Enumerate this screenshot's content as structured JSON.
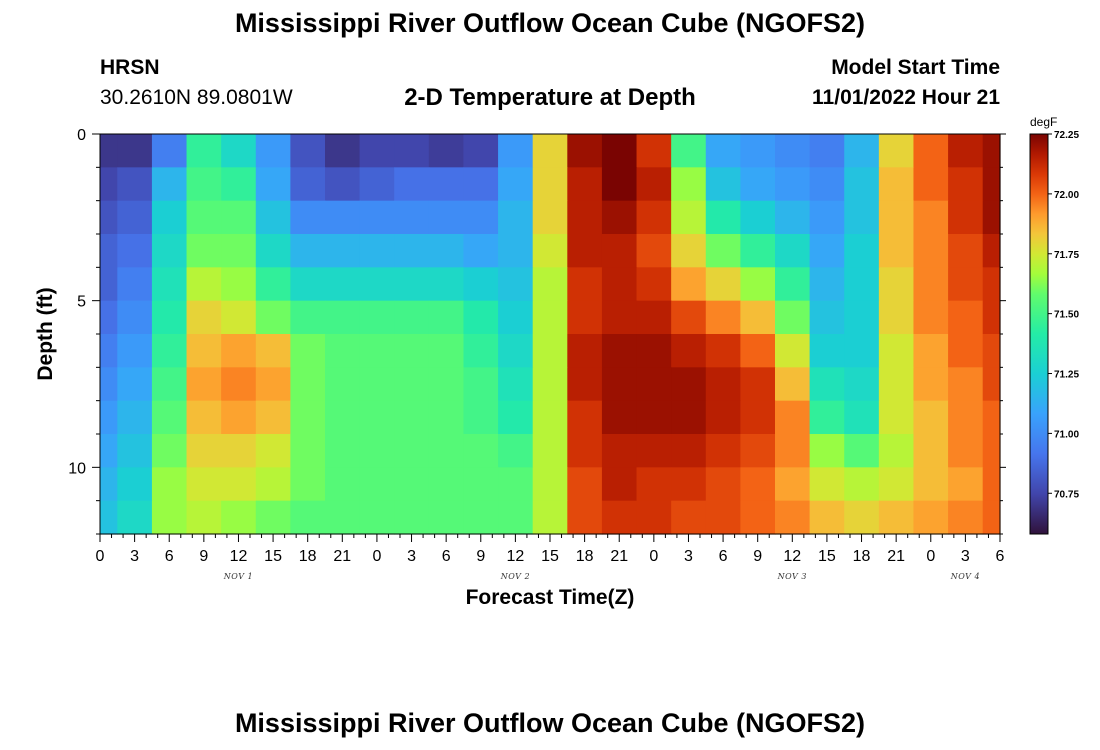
{
  "header": {
    "title": "Mississippi River Outflow Ocean Cube (NGOFS2)",
    "station_name": "HRSN",
    "station_coords": "30.2610N  89.0801W",
    "subtitle": "2-D Temperature at Depth",
    "model_start_label": "Model Start Time",
    "model_start_value": "11/01/2022 Hour 21"
  },
  "footer": {
    "title": "Mississippi River Outflow Ocean Cube (NGOFS2)"
  },
  "chart_data": {
    "type": "heatmap",
    "title": "2-D Temperature at Depth",
    "xlabel": "Forecast Time(Z)",
    "ylabel": "Depth (ft)",
    "x_tick_labels": [
      "0",
      "3",
      "6",
      "9",
      "12",
      "15",
      "18",
      "21",
      "0",
      "3",
      "6",
      "9",
      "12",
      "15",
      "18",
      "21",
      "0",
      "3",
      "6",
      "9",
      "12",
      "15",
      "18",
      "21",
      "0",
      "3",
      "6"
    ],
    "x_day_labels": [
      {
        "label": "NOV 1",
        "hour": 12
      },
      {
        "label": "NOV 2",
        "hour": 36
      },
      {
        "label": "NOV 3",
        "hour": 60
      },
      {
        "label": "NOV 4",
        "hour": 75
      }
    ],
    "x_hours": [
      0,
      3,
      6,
      9,
      12,
      15,
      18,
      21,
      24,
      27,
      30,
      33,
      36,
      39,
      42,
      45,
      48,
      51,
      54,
      57,
      60,
      63,
      66,
      69,
      72,
      75,
      78
    ],
    "xlim": [
      0,
      78
    ],
    "y_tick_labels": [
      "0",
      "5",
      "10"
    ],
    "y_ticks": [
      0,
      5,
      10
    ],
    "ylim": [
      0,
      12
    ],
    "depth_bands": [
      0,
      1,
      2,
      3,
      4,
      5,
      6,
      7,
      8,
      9,
      10,
      11
    ],
    "colorbar": {
      "unit": "degF",
      "min": 70.58,
      "max": 72.25,
      "tick_values": [
        70.75,
        71.0,
        71.25,
        71.5,
        71.75,
        72.0,
        72.25
      ],
      "tick_labels": [
        "70.75",
        "71.00",
        "71.25",
        "71.50",
        "71.75",
        "72.00",
        "72.25"
      ]
    },
    "temperature_degF": [
      [
        70.7,
        70.7,
        70.95,
        71.45,
        71.3,
        71.05,
        70.8,
        70.7,
        70.75,
        70.75,
        70.72,
        70.75,
        71.05,
        71.8,
        72.2,
        72.25,
        72.1,
        71.5,
        71.1,
        71.05,
        71.0,
        70.95,
        71.15,
        71.8,
        72.0,
        72.15,
        72.2
      ],
      [
        70.75,
        70.8,
        71.15,
        71.5,
        71.45,
        71.1,
        70.85,
        70.8,
        70.85,
        70.9,
        70.9,
        70.9,
        71.1,
        71.8,
        72.15,
        72.25,
        72.15,
        71.65,
        71.2,
        71.1,
        71.05,
        71.0,
        71.2,
        71.85,
        72.0,
        72.1,
        72.2
      ],
      [
        70.8,
        70.85,
        71.25,
        71.55,
        71.55,
        71.2,
        71.0,
        71.0,
        71.0,
        71.0,
        71.0,
        71.0,
        71.15,
        71.8,
        72.15,
        72.2,
        72.1,
        71.7,
        71.4,
        71.25,
        71.15,
        71.05,
        71.2,
        71.85,
        71.95,
        72.1,
        72.2
      ],
      [
        70.85,
        70.9,
        71.3,
        71.6,
        71.6,
        71.3,
        71.15,
        71.15,
        71.15,
        71.15,
        71.15,
        71.1,
        71.15,
        71.75,
        72.15,
        72.15,
        72.05,
        71.8,
        71.6,
        71.45,
        71.3,
        71.1,
        71.25,
        71.85,
        71.95,
        72.05,
        72.15
      ],
      [
        70.85,
        70.95,
        71.35,
        71.7,
        71.65,
        71.45,
        71.3,
        71.3,
        71.3,
        71.3,
        71.3,
        71.25,
        71.2,
        71.7,
        72.1,
        72.15,
        72.1,
        71.9,
        71.8,
        71.65,
        71.45,
        71.15,
        71.25,
        71.8,
        71.95,
        72.05,
        72.1
      ],
      [
        70.9,
        71.0,
        71.4,
        71.8,
        71.75,
        71.6,
        71.5,
        71.5,
        71.5,
        71.5,
        71.5,
        71.4,
        71.25,
        71.7,
        72.1,
        72.15,
        72.15,
        72.05,
        71.95,
        71.85,
        71.6,
        71.2,
        71.25,
        71.8,
        71.95,
        72.0,
        72.1
      ],
      [
        70.95,
        71.05,
        71.45,
        71.85,
        71.9,
        71.85,
        71.6,
        71.55,
        71.55,
        71.55,
        71.55,
        71.45,
        71.3,
        71.7,
        72.15,
        72.2,
        72.2,
        72.15,
        72.1,
        72.0,
        71.75,
        71.25,
        71.25,
        71.75,
        71.9,
        72.0,
        72.05
      ],
      [
        71.0,
        71.1,
        71.5,
        71.9,
        71.95,
        71.9,
        71.6,
        71.55,
        71.55,
        71.55,
        71.55,
        71.5,
        71.35,
        71.7,
        72.15,
        72.2,
        72.2,
        72.2,
        72.15,
        72.1,
        71.85,
        71.35,
        71.3,
        71.75,
        71.9,
        71.95,
        72.05
      ],
      [
        71.05,
        71.15,
        71.55,
        71.85,
        71.9,
        71.85,
        71.6,
        71.55,
        71.55,
        71.55,
        71.55,
        71.5,
        71.4,
        71.7,
        72.1,
        72.2,
        72.2,
        72.2,
        72.15,
        72.1,
        71.95,
        71.45,
        71.35,
        71.75,
        71.85,
        71.95,
        72.0
      ],
      [
        71.1,
        71.2,
        71.6,
        71.8,
        71.8,
        71.75,
        71.6,
        71.55,
        71.55,
        71.55,
        71.55,
        71.55,
        71.5,
        71.7,
        72.1,
        72.15,
        72.15,
        72.15,
        72.1,
        72.05,
        71.95,
        71.65,
        71.55,
        71.7,
        71.85,
        71.95,
        72.0
      ],
      [
        71.15,
        71.25,
        71.65,
        71.75,
        71.75,
        71.7,
        71.6,
        71.55,
        71.55,
        71.55,
        71.55,
        71.55,
        71.55,
        71.7,
        72.05,
        72.15,
        72.1,
        72.1,
        72.05,
        72.0,
        71.9,
        71.75,
        71.7,
        71.75,
        71.85,
        71.9,
        72.0
      ],
      [
        71.2,
        71.3,
        71.65,
        71.7,
        71.65,
        71.6,
        71.55,
        71.55,
        71.55,
        71.55,
        71.55,
        71.55,
        71.55,
        71.7,
        72.05,
        72.1,
        72.1,
        72.05,
        72.05,
        72.0,
        71.95,
        71.85,
        71.8,
        71.85,
        71.9,
        71.95,
        72.0
      ]
    ]
  }
}
